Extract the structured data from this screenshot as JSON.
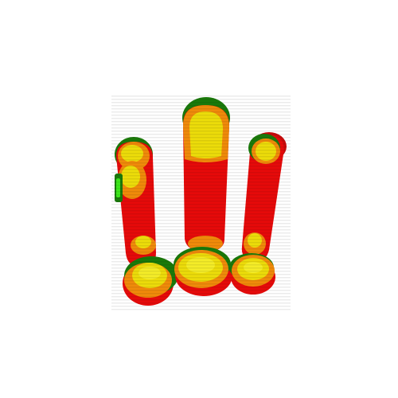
{
  "image": {
    "description_kind": "abstract-3d-render",
    "icon": "layered-blob-sculpture-icon",
    "background": "#ffffff",
    "palette": {
      "red": "#e60a0a",
      "red_dark": "#c80a0a",
      "orange": "#f08a0a",
      "yellow": "#ecdc0a",
      "yellow_light": "#f4ec28",
      "green": "#1a7a0a",
      "lime": "#3ce81a",
      "stripe": "rgba(0,0,0,0.07)"
    }
  }
}
